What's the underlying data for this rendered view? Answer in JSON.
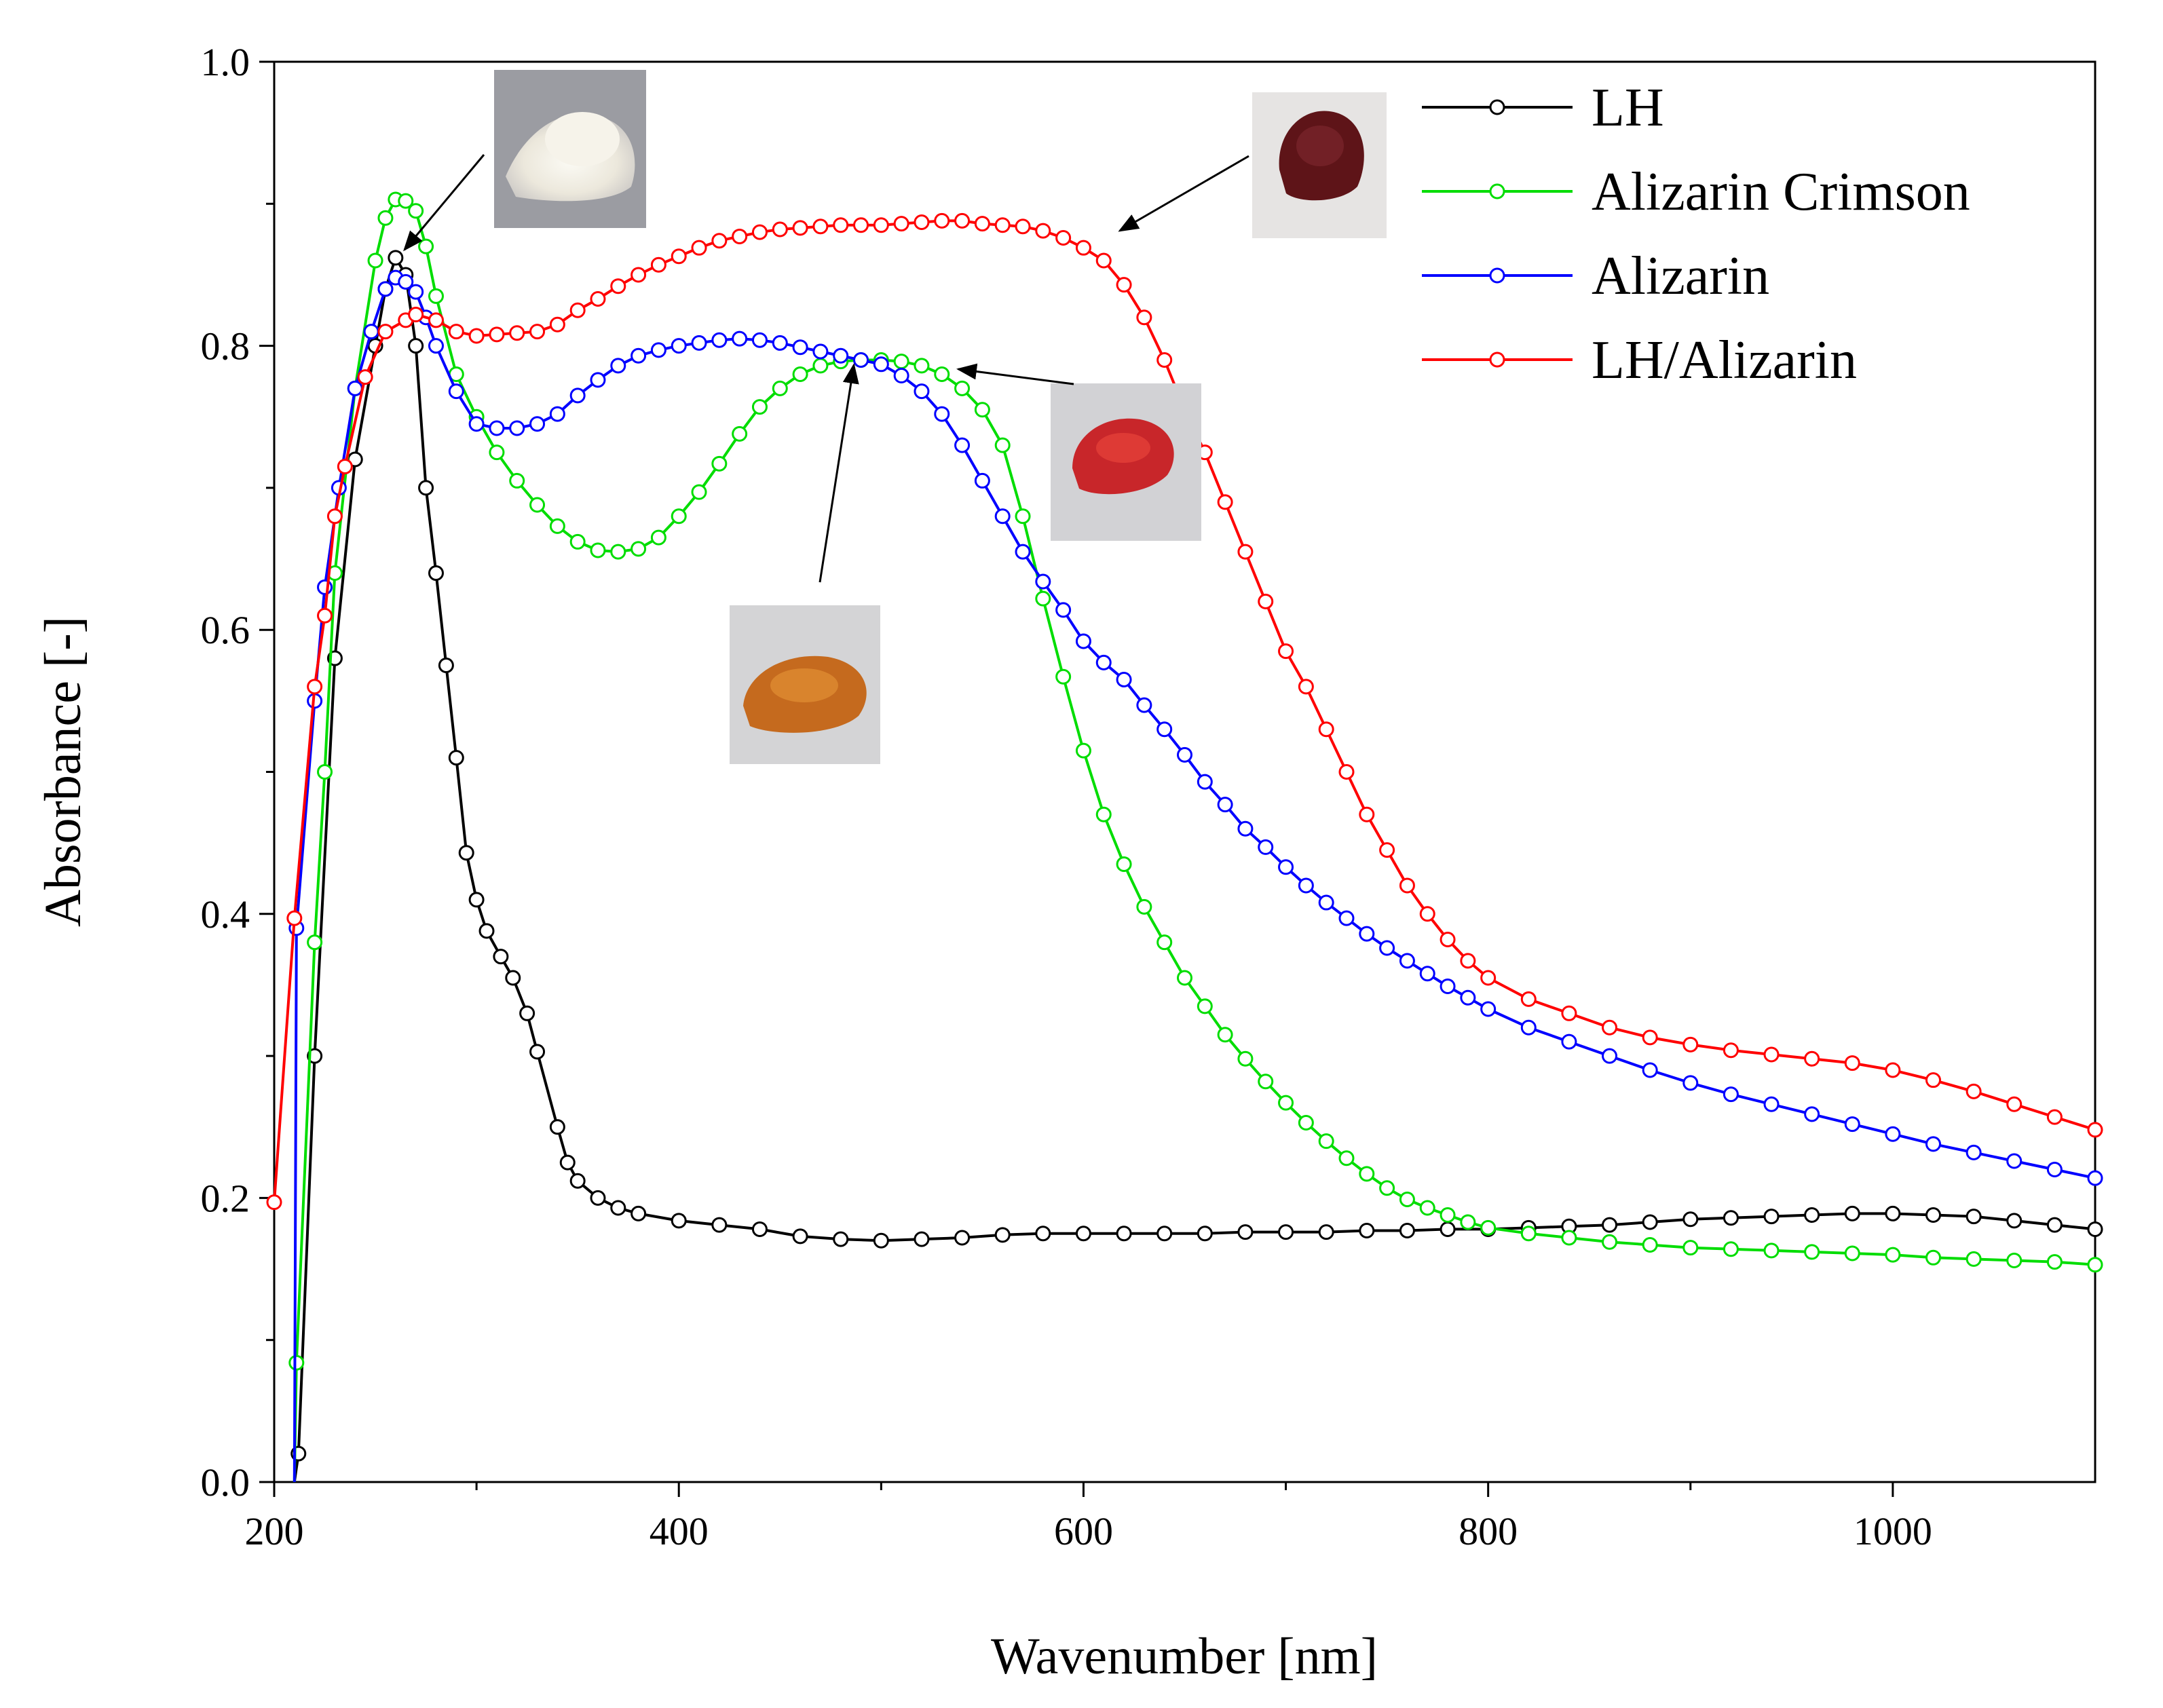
{
  "chart_data": {
    "type": "line",
    "title": "",
    "xlabel": "Wavenumber [nm]",
    "ylabel": "Absorbance [-]",
    "xlim": [
      200,
      1100
    ],
    "ylim": [
      0.0,
      1.0
    ],
    "xticks": [
      200,
      400,
      600,
      800,
      1000
    ],
    "xtick_labels": [
      "200",
      "400",
      "600",
      "800",
      "1000"
    ],
    "yticks": [
      0.0,
      0.2,
      0.4,
      0.6,
      0.8,
      1.0
    ],
    "ytick_labels": [
      "0.0",
      "0.2",
      "0.4",
      "0.6",
      "0.8",
      "1.0"
    ],
    "legend_position": "top-right",
    "marker": "open-circle",
    "series": [
      {
        "name": "LH",
        "color": "#000000",
        "points": [
          [
            210,
            0.0
          ],
          [
            212,
            0.02
          ],
          [
            220,
            0.3
          ],
          [
            230,
            0.58
          ],
          [
            240,
            0.72
          ],
          [
            250,
            0.8
          ],
          [
            255,
            0.84
          ],
          [
            260,
            0.862
          ],
          [
            265,
            0.85
          ],
          [
            270,
            0.8
          ],
          [
            275,
            0.7
          ],
          [
            280,
            0.64
          ],
          [
            285,
            0.575
          ],
          [
            290,
            0.51
          ],
          [
            295,
            0.443
          ],
          [
            300,
            0.41
          ],
          [
            305,
            0.388
          ],
          [
            312,
            0.37
          ],
          [
            318,
            0.355
          ],
          [
            325,
            0.33
          ],
          [
            330,
            0.303
          ],
          [
            340,
            0.25
          ],
          [
            345,
            0.225
          ],
          [
            350,
            0.212
          ],
          [
            360,
            0.2
          ],
          [
            370,
            0.193
          ],
          [
            380,
            0.189
          ],
          [
            400,
            0.184
          ],
          [
            420,
            0.181
          ],
          [
            440,
            0.178
          ],
          [
            460,
            0.173
          ],
          [
            480,
            0.171
          ],
          [
            500,
            0.17
          ],
          [
            520,
            0.171
          ],
          [
            540,
            0.172
          ],
          [
            560,
            0.174
          ],
          [
            580,
            0.175
          ],
          [
            600,
            0.175
          ],
          [
            620,
            0.175
          ],
          [
            640,
            0.175
          ],
          [
            660,
            0.175
          ],
          [
            680,
            0.176
          ],
          [
            700,
            0.176
          ],
          [
            720,
            0.176
          ],
          [
            740,
            0.177
          ],
          [
            760,
            0.177
          ],
          [
            780,
            0.178
          ],
          [
            800,
            0.178
          ],
          [
            820,
            0.179
          ],
          [
            840,
            0.18
          ],
          [
            860,
            0.181
          ],
          [
            880,
            0.183
          ],
          [
            900,
            0.185
          ],
          [
            920,
            0.186
          ],
          [
            940,
            0.187
          ],
          [
            960,
            0.188
          ],
          [
            980,
            0.189
          ],
          [
            1000,
            0.189
          ],
          [
            1020,
            0.188
          ],
          [
            1040,
            0.187
          ],
          [
            1060,
            0.184
          ],
          [
            1080,
            0.181
          ],
          [
            1100,
            0.178
          ]
        ]
      },
      {
        "name": "Alizarin Crimson",
        "color": "#00dd00",
        "points": [
          [
            210,
            0.0
          ],
          [
            211,
            0.084
          ],
          [
            220,
            0.38
          ],
          [
            225,
            0.5
          ],
          [
            230,
            0.64
          ],
          [
            240,
            0.77
          ],
          [
            250,
            0.86
          ],
          [
            255,
            0.89
          ],
          [
            260,
            0.903
          ],
          [
            265,
            0.902
          ],
          [
            270,
            0.895
          ],
          [
            275,
            0.87
          ],
          [
            280,
            0.835
          ],
          [
            290,
            0.78
          ],
          [
            300,
            0.75
          ],
          [
            310,
            0.725
          ],
          [
            320,
            0.705
          ],
          [
            330,
            0.688
          ],
          [
            340,
            0.673
          ],
          [
            350,
            0.662
          ],
          [
            360,
            0.656
          ],
          [
            370,
            0.655
          ],
          [
            380,
            0.657
          ],
          [
            390,
            0.665
          ],
          [
            400,
            0.68
          ],
          [
            410,
            0.697
          ],
          [
            420,
            0.717
          ],
          [
            430,
            0.738
          ],
          [
            440,
            0.757
          ],
          [
            450,
            0.77
          ],
          [
            460,
            0.78
          ],
          [
            470,
            0.786
          ],
          [
            480,
            0.789
          ],
          [
            490,
            0.79
          ],
          [
            500,
            0.79
          ],
          [
            510,
            0.789
          ],
          [
            520,
            0.786
          ],
          [
            530,
            0.78
          ],
          [
            540,
            0.77
          ],
          [
            550,
            0.755
          ],
          [
            560,
            0.73
          ],
          [
            570,
            0.68
          ],
          [
            580,
            0.622
          ],
          [
            590,
            0.567
          ],
          [
            600,
            0.515
          ],
          [
            610,
            0.47
          ],
          [
            620,
            0.435
          ],
          [
            630,
            0.405
          ],
          [
            640,
            0.38
          ],
          [
            650,
            0.355
          ],
          [
            660,
            0.335
          ],
          [
            670,
            0.315
          ],
          [
            680,
            0.298
          ],
          [
            690,
            0.282
          ],
          [
            700,
            0.267
          ],
          [
            710,
            0.253
          ],
          [
            720,
            0.24
          ],
          [
            730,
            0.228
          ],
          [
            740,
            0.217
          ],
          [
            750,
            0.207
          ],
          [
            760,
            0.199
          ],
          [
            770,
            0.193
          ],
          [
            780,
            0.188
          ],
          [
            790,
            0.183
          ],
          [
            800,
            0.179
          ],
          [
            820,
            0.175
          ],
          [
            840,
            0.172
          ],
          [
            860,
            0.169
          ],
          [
            880,
            0.167
          ],
          [
            900,
            0.165
          ],
          [
            920,
            0.164
          ],
          [
            940,
            0.163
          ],
          [
            960,
            0.162
          ],
          [
            980,
            0.161
          ],
          [
            1000,
            0.16
          ],
          [
            1020,
            0.158
          ],
          [
            1040,
            0.157
          ],
          [
            1060,
            0.156
          ],
          [
            1080,
            0.155
          ],
          [
            1100,
            0.153
          ]
        ]
      },
      {
        "name": "Alizarin",
        "color": "#0000ff",
        "points": [
          [
            210,
            0.0
          ],
          [
            211,
            0.39
          ],
          [
            220,
            0.55
          ],
          [
            225,
            0.63
          ],
          [
            232,
            0.7
          ],
          [
            240,
            0.77
          ],
          [
            248,
            0.81
          ],
          [
            255,
            0.84
          ],
          [
            260,
            0.848
          ],
          [
            265,
            0.845
          ],
          [
            270,
            0.838
          ],
          [
            275,
            0.82
          ],
          [
            280,
            0.8
          ],
          [
            290,
            0.768
          ],
          [
            300,
            0.745
          ],
          [
            310,
            0.742
          ],
          [
            320,
            0.742
          ],
          [
            330,
            0.745
          ],
          [
            340,
            0.752
          ],
          [
            350,
            0.765
          ],
          [
            360,
            0.776
          ],
          [
            370,
            0.786
          ],
          [
            380,
            0.793
          ],
          [
            390,
            0.797
          ],
          [
            400,
            0.8
          ],
          [
            410,
            0.802
          ],
          [
            420,
            0.804
          ],
          [
            430,
            0.805
          ],
          [
            440,
            0.804
          ],
          [
            450,
            0.802
          ],
          [
            460,
            0.799
          ],
          [
            470,
            0.796
          ],
          [
            480,
            0.793
          ],
          [
            490,
            0.79
          ],
          [
            500,
            0.787
          ],
          [
            510,
            0.779
          ],
          [
            520,
            0.768
          ],
          [
            530,
            0.752
          ],
          [
            540,
            0.73
          ],
          [
            550,
            0.705
          ],
          [
            560,
            0.68
          ],
          [
            570,
            0.655
          ],
          [
            580,
            0.634
          ],
          [
            590,
            0.614
          ],
          [
            600,
            0.592
          ],
          [
            610,
            0.577
          ],
          [
            620,
            0.565
          ],
          [
            630,
            0.547
          ],
          [
            640,
            0.53
          ],
          [
            650,
            0.512
          ],
          [
            660,
            0.493
          ],
          [
            670,
            0.477
          ],
          [
            680,
            0.46
          ],
          [
            690,
            0.447
          ],
          [
            700,
            0.433
          ],
          [
            710,
            0.42
          ],
          [
            720,
            0.408
          ],
          [
            730,
            0.397
          ],
          [
            740,
            0.386
          ],
          [
            750,
            0.376
          ],
          [
            760,
            0.367
          ],
          [
            770,
            0.358
          ],
          [
            780,
            0.349
          ],
          [
            790,
            0.341
          ],
          [
            800,
            0.333
          ],
          [
            820,
            0.32
          ],
          [
            840,
            0.31
          ],
          [
            860,
            0.3
          ],
          [
            880,
            0.29
          ],
          [
            900,
            0.281
          ],
          [
            920,
            0.273
          ],
          [
            940,
            0.266
          ],
          [
            960,
            0.259
          ],
          [
            980,
            0.252
          ],
          [
            1000,
            0.245
          ],
          [
            1020,
            0.238
          ],
          [
            1040,
            0.232
          ],
          [
            1060,
            0.226
          ],
          [
            1080,
            0.22
          ],
          [
            1100,
            0.214
          ]
        ]
      },
      {
        "name": "LH/Alizarin",
        "color": "#ff0000",
        "points": [
          [
            200,
            0.197
          ],
          [
            210,
            0.397
          ],
          [
            220,
            0.56
          ],
          [
            225,
            0.61
          ],
          [
            230,
            0.68
          ],
          [
            235,
            0.715
          ],
          [
            245,
            0.778
          ],
          [
            255,
            0.81
          ],
          [
            265,
            0.818
          ],
          [
            270,
            0.822
          ],
          [
            280,
            0.818
          ],
          [
            290,
            0.81
          ],
          [
            300,
            0.807
          ],
          [
            310,
            0.808
          ],
          [
            320,
            0.809
          ],
          [
            330,
            0.81
          ],
          [
            340,
            0.815
          ],
          [
            350,
            0.825
          ],
          [
            360,
            0.833
          ],
          [
            370,
            0.842
          ],
          [
            380,
            0.85
          ],
          [
            390,
            0.857
          ],
          [
            400,
            0.863
          ],
          [
            410,
            0.869
          ],
          [
            420,
            0.874
          ],
          [
            430,
            0.877
          ],
          [
            440,
            0.88
          ],
          [
            450,
            0.882
          ],
          [
            460,
            0.883
          ],
          [
            470,
            0.884
          ],
          [
            480,
            0.885
          ],
          [
            490,
            0.885
          ],
          [
            500,
            0.885
          ],
          [
            510,
            0.886
          ],
          [
            520,
            0.887
          ],
          [
            530,
            0.888
          ],
          [
            540,
            0.888
          ],
          [
            550,
            0.886
          ],
          [
            560,
            0.885
          ],
          [
            570,
            0.884
          ],
          [
            580,
            0.881
          ],
          [
            590,
            0.876
          ],
          [
            600,
            0.869
          ],
          [
            610,
            0.86
          ],
          [
            620,
            0.843
          ],
          [
            630,
            0.82
          ],
          [
            640,
            0.79
          ],
          [
            650,
            0.755
          ],
          [
            660,
            0.725
          ],
          [
            670,
            0.69
          ],
          [
            680,
            0.655
          ],
          [
            690,
            0.62
          ],
          [
            700,
            0.585
          ],
          [
            710,
            0.56
          ],
          [
            720,
            0.53
          ],
          [
            730,
            0.5
          ],
          [
            740,
            0.47
          ],
          [
            750,
            0.445
          ],
          [
            760,
            0.42
          ],
          [
            770,
            0.4
          ],
          [
            780,
            0.382
          ],
          [
            790,
            0.367
          ],
          [
            800,
            0.355
          ],
          [
            820,
            0.34
          ],
          [
            840,
            0.33
          ],
          [
            860,
            0.32
          ],
          [
            880,
            0.313
          ],
          [
            900,
            0.308
          ],
          [
            920,
            0.304
          ],
          [
            940,
            0.301
          ],
          [
            960,
            0.298
          ],
          [
            980,
            0.295
          ],
          [
            1000,
            0.29
          ],
          [
            1020,
            0.283
          ],
          [
            1040,
            0.275
          ],
          [
            1060,
            0.266
          ],
          [
            1080,
            0.257
          ],
          [
            1100,
            0.248
          ]
        ]
      }
    ],
    "annotations": [
      {
        "image": "white-powder-photo",
        "color": "#ece8dc",
        "target": [
          261,
          0.862
        ]
      },
      {
        "image": "dark-red-powder-photo",
        "color": "#5e1418",
        "target": [
          608,
          0.87
        ]
      },
      {
        "image": "red-powder-photo",
        "color": "#c8262a",
        "target": [
          540,
          0.785
        ]
      },
      {
        "image": "orange-powder-photo",
        "color": "#c56a1e",
        "target": [
          490,
          0.79
        ]
      }
    ]
  }
}
